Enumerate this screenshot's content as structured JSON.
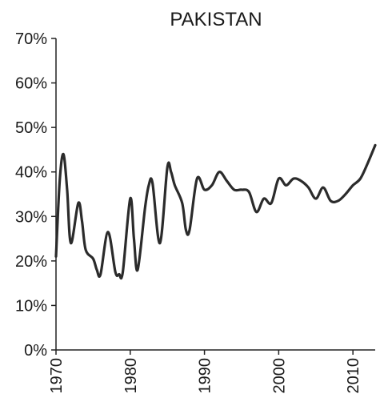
{
  "chart_data": {
    "type": "line",
    "title": "PAKISTAN",
    "xlabel": "",
    "ylabel": "",
    "xlim": [
      1970,
      2013
    ],
    "ylim": [
      0,
      70
    ],
    "y_ticks": [
      0,
      10,
      20,
      30,
      40,
      50,
      60,
      70
    ],
    "y_tick_labels": [
      "0%",
      "10%",
      "20%",
      "30%",
      "40%",
      "50%",
      "60%",
      "70%"
    ],
    "x_ticks": [
      1970,
      1980,
      1990,
      2000,
      2010
    ],
    "x_tick_labels": [
      "1970",
      "1980",
      "1990",
      "2000",
      "2010"
    ],
    "grid": false,
    "series": [
      {
        "x": [
          1970,
          1970.5,
          1971,
          1971.5,
          1972,
          1973,
          1973.5,
          1974,
          1975,
          1975.5,
          1976,
          1977,
          1978,
          1978.5,
          1979,
          1980,
          1980.5,
          1981,
          1982,
          1982.5,
          1983,
          1984,
          1985,
          1985.5,
          1986,
          1987,
          1987.5,
          1988,
          1989,
          1990,
          1991,
          1992,
          1993,
          1994,
          1995,
          1996,
          1997,
          1998,
          1999,
          2000,
          2001,
          2002,
          2003,
          2004,
          2005,
          2006,
          2007,
          2008,
          2009,
          2010,
          2011,
          2012,
          2013
        ],
        "y": [
          21,
          38,
          44,
          36,
          24,
          33,
          29,
          22.5,
          20.5,
          18,
          17,
          26.5,
          17.5,
          17,
          17.5,
          34,
          25,
          18,
          32,
          37,
          37.5,
          24,
          41,
          40,
          37,
          33,
          27,
          27,
          38.5,
          36,
          37,
          40,
          38,
          36,
          36,
          35.5,
          31,
          34,
          33,
          38.5,
          37,
          38.5,
          38,
          36.5,
          34,
          36.5,
          33.5,
          33.5,
          35,
          37,
          38.5,
          42,
          46
        ]
      }
    ]
  }
}
